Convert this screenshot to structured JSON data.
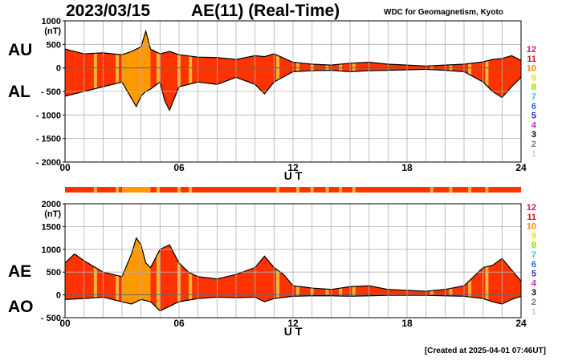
{
  "header": {
    "date": "2023/03/15",
    "title": "AE(11) (Real-Time)",
    "source": "WDC for Geomagnetism, Kyoto"
  },
  "footer": {
    "created": "[Created at 2025-04-01 07:46UT]"
  },
  "colors": {
    "normal": "#ff3300",
    "degraded": "#ff9900",
    "stripe": "#f2b233",
    "outline": "#000000",
    "grid": "#b0b0b0"
  },
  "legend": {
    "items": [
      {
        "label": "12",
        "color": "#e0117a"
      },
      {
        "label": "11",
        "color": "#dd1111"
      },
      {
        "label": "10",
        "color": "#ff8800"
      },
      {
        "label": "9",
        "color": "#e6e600"
      },
      {
        "label": "8",
        "color": "#88dd00"
      },
      {
        "label": "7",
        "color": "#22ccee"
      },
      {
        "label": "6",
        "color": "#2266ff"
      },
      {
        "label": "5",
        "color": "#3322cc"
      },
      {
        "label": "4",
        "color": "#cc22cc"
      },
      {
        "label": "3",
        "color": "#000000"
      },
      {
        "label": "2",
        "color": "#777777"
      },
      {
        "label": "1",
        "color": "#cccccc"
      }
    ]
  },
  "chart_data": [
    {
      "type": "area",
      "panel": "AU/AL",
      "series": [
        {
          "name": "AU",
          "x": [
            0,
            1,
            2,
            3,
            3.5,
            4,
            4.25,
            4.5,
            5,
            5.5,
            6,
            7,
            8,
            9,
            10,
            10.5,
            11,
            12,
            13,
            14,
            15,
            16,
            17,
            18,
            19,
            20,
            21,
            22,
            22.5,
            23,
            23.5,
            24
          ],
          "values": [
            400,
            300,
            320,
            280,
            350,
            450,
            780,
            400,
            300,
            350,
            280,
            230,
            220,
            180,
            260,
            240,
            300,
            120,
            80,
            60,
            100,
            120,
            80,
            60,
            40,
            60,
            80,
            130,
            180,
            200,
            260,
            160
          ]
        },
        {
          "name": "AL",
          "x": [
            0,
            1,
            2,
            3,
            3.5,
            3.75,
            4,
            4.25,
            4.5,
            5,
            5.25,
            5.5,
            6,
            7,
            8,
            9,
            10,
            10.5,
            11,
            12,
            13,
            14,
            15,
            16,
            17,
            18,
            19,
            20,
            21,
            22,
            22.5,
            23,
            23.5,
            24
          ],
          "values": [
            -600,
            -500,
            -400,
            -300,
            -650,
            -820,
            -600,
            -500,
            -450,
            -300,
            -700,
            -900,
            -400,
            -300,
            -350,
            -200,
            -350,
            -550,
            -300,
            -80,
            -60,
            -50,
            -80,
            -60,
            -50,
            -40,
            -30,
            -50,
            -80,
            -300,
            -500,
            -630,
            -400,
            -200
          ]
        }
      ],
      "ylabel": "(nT)",
      "ylim": [
        -2000,
        1000
      ],
      "yticks": [
        1000,
        500,
        0,
        -500,
        -1000,
        -1500,
        -2000
      ],
      "xlim": [
        0,
        24
      ],
      "xticks": [
        0,
        6,
        12,
        18,
        24
      ],
      "xticklabels": [
        "00",
        "06",
        "12",
        "18",
        "24"
      ],
      "xlabel": "U T",
      "side_labels": [
        "AU",
        "AL"
      ],
      "degraded_range": [
        3,
        4.5
      ],
      "stripes": [
        1.6,
        2.75,
        4.9,
        6.0,
        6.6,
        11.2,
        12.25,
        13.0,
        13.8,
        14.5,
        15.2,
        19.3,
        20.3,
        21.3,
        22.2
      ]
    },
    {
      "type": "area",
      "panel": "AE/AO",
      "series": [
        {
          "name": "AE",
          "x": [
            0,
            0.5,
            1,
            2,
            3,
            3.5,
            3.75,
            4,
            4.25,
            4.5,
            5,
            5.5,
            6,
            6.5,
            7,
            8,
            9,
            10,
            10.5,
            11,
            11.5,
            12,
            13,
            14,
            15,
            16,
            17,
            18,
            19,
            20,
            21,
            21.5,
            22,
            22.5,
            23,
            23.5,
            24
          ],
          "values": [
            700,
            900,
            750,
            500,
            400,
            900,
            1250,
            1100,
            700,
            600,
            1000,
            1100,
            700,
            500,
            400,
            350,
            450,
            600,
            850,
            600,
            450,
            200,
            150,
            120,
            180,
            200,
            120,
            100,
            80,
            120,
            200,
            400,
            600,
            650,
            800,
            550,
            300
          ]
        },
        {
          "name": "AO",
          "x": [
            0,
            1,
            2,
            3,
            3.5,
            4,
            4.5,
            5,
            5.5,
            6,
            7,
            8,
            9,
            10,
            10.5,
            11,
            12,
            13,
            14,
            15,
            16,
            17,
            18,
            19,
            20,
            21,
            22,
            22.5,
            23,
            23.5,
            24
          ],
          "values": [
            -100,
            -80,
            -50,
            -150,
            -200,
            -100,
            -150,
            -350,
            -250,
            -150,
            -80,
            -50,
            -60,
            -50,
            -150,
            -80,
            -30,
            -20,
            -20,
            -30,
            -20,
            -10,
            -10,
            -10,
            -20,
            -30,
            -80,
            -150,
            -200,
            -100,
            -30
          ]
        }
      ],
      "ylabel": "(nT)",
      "ylim": [
        -500,
        2000
      ],
      "yticks": [
        2000,
        1500,
        1000,
        500,
        0,
        -500
      ],
      "xlim": [
        0,
        24
      ],
      "xticks": [
        0,
        6,
        12,
        18,
        24
      ],
      "xticklabels": [
        "00",
        "06",
        "12",
        "18",
        "24"
      ],
      "xlabel": "U T",
      "side_labels": [
        "AE",
        "AO"
      ],
      "degraded_range": [
        3,
        4.5
      ],
      "stripes": [
        1.6,
        2.75,
        4.9,
        6.0,
        6.6,
        11.2,
        12.25,
        13.0,
        13.8,
        14.5,
        15.2,
        19.3,
        20.3,
        21.3,
        22.2
      ]
    }
  ]
}
